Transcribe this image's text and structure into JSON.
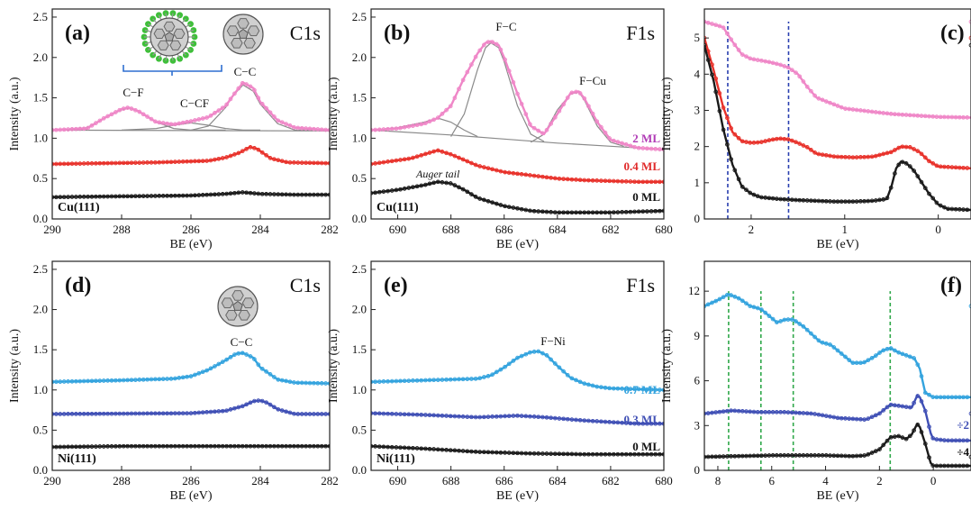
{
  "colors": {
    "black": "#1a1a1a",
    "red": "#e8312a",
    "pink": "#ef86c7",
    "light_blue": "#33a3de",
    "dark_blue": "#3f4fb5",
    "fit_gray": "#8a8a8a",
    "bracket_blue": "#2f6fd0",
    "dash_blue": "#2a3fb0",
    "dash_green": "#2fa84a",
    "magenta_text": "#b03ab5",
    "red_text": "#e02a2a"
  },
  "chart_data": [
    {
      "id": "a",
      "type": "line",
      "panel_label": "(a)",
      "orbital": "C1s",
      "substrate": "Cu(111)",
      "xlabel": "BE (eV)",
      "ylabel": "Intensity (a.u.)",
      "xlim": [
        290,
        282
      ],
      "ylim": [
        0,
        2.6
      ],
      "xticks": [
        "290",
        "288",
        "286",
        "284",
        "282"
      ],
      "yticks": [
        "0.0",
        "0.5",
        "1.0",
        "1.5",
        "2.0",
        "2.5"
      ],
      "peak_labels": [
        "C−F",
        "C−CF",
        "C−C"
      ],
      "series": [
        {
          "color": "pink",
          "x": [
            290,
            289,
            288.5,
            288,
            287.8,
            287.5,
            287,
            286.5,
            286,
            285.5,
            285,
            284.8,
            284.5,
            284.2,
            284,
            283.5,
            283,
            282
          ],
          "values": [
            1.1,
            1.12,
            1.25,
            1.36,
            1.38,
            1.33,
            1.2,
            1.17,
            1.21,
            1.26,
            1.4,
            1.52,
            1.69,
            1.62,
            1.45,
            1.22,
            1.13,
            1.1
          ]
        },
        {
          "color": "red",
          "x": [
            290,
            287,
            285.5,
            285,
            284.6,
            284.3,
            284.1,
            283.7,
            283.2,
            282
          ],
          "values": [
            0.68,
            0.7,
            0.72,
            0.76,
            0.82,
            0.89,
            0.87,
            0.75,
            0.7,
            0.69
          ]
        },
        {
          "color": "black",
          "x": [
            290,
            288,
            286,
            285,
            284.5,
            284,
            283,
            282
          ],
          "values": [
            0.27,
            0.28,
            0.29,
            0.31,
            0.33,
            0.31,
            0.3,
            0.3
          ]
        }
      ],
      "fits": [
        {
          "x": [
            290,
            282
          ],
          "values": [
            1.1,
            1.09
          ]
        },
        {
          "x": [
            290,
            289,
            288.5,
            288,
            287.8,
            287.5,
            287,
            286.5,
            286,
            285
          ],
          "values": [
            1.1,
            1.13,
            1.25,
            1.35,
            1.37,
            1.33,
            1.2,
            1.12,
            1.1,
            1.1
          ]
        },
        {
          "x": [
            288,
            287,
            286.5,
            286,
            285.5,
            285,
            284.5,
            284
          ],
          "values": [
            1.1,
            1.12,
            1.16,
            1.19,
            1.16,
            1.12,
            1.1,
            1.1
          ]
        },
        {
          "x": [
            286,
            285.5,
            285,
            284.8,
            284.5,
            284.2,
            284,
            283.5,
            283,
            282.5
          ],
          "values": [
            1.1,
            1.15,
            1.38,
            1.52,
            1.66,
            1.58,
            1.42,
            1.18,
            1.1,
            1.1
          ]
        }
      ]
    },
    {
      "id": "b",
      "type": "line",
      "panel_label": "(b)",
      "orbital": "F1s",
      "substrate": "Cu(111)",
      "xlabel": "BE (eV)",
      "ylabel": "Intensity (a.u.)",
      "xlim": [
        691,
        680
      ],
      "ylim": [
        0,
        2.6
      ],
      "xticks": [
        "690",
        "688",
        "686",
        "684",
        "682",
        "680"
      ],
      "yticks": [
        "0.0",
        "0.5",
        "1.0",
        "1.5",
        "2.0",
        "2.5"
      ],
      "peak_labels": [
        "F−C",
        "F−Cu"
      ],
      "coverage_labels": [
        "2 ML",
        "0.4 ML",
        "0 ML"
      ],
      "note": "Auger tail",
      "series": [
        {
          "color": "pink",
          "x": [
            691,
            690,
            689,
            688.5,
            688,
            687.5,
            687,
            686.7,
            686.5,
            686.2,
            686,
            685.5,
            685,
            684.5,
            684,
            683.5,
            683.2,
            683,
            682.5,
            682,
            681,
            680
          ],
          "values": [
            1.1,
            1.12,
            1.18,
            1.25,
            1.4,
            1.75,
            2.05,
            2.18,
            2.2,
            2.15,
            2.0,
            1.55,
            1.15,
            1.05,
            1.3,
            1.56,
            1.58,
            1.5,
            1.2,
            0.98,
            0.88,
            0.86
          ]
        },
        {
          "color": "red",
          "x": [
            691,
            689.5,
            688.5,
            688,
            687,
            686,
            685,
            684,
            683,
            682,
            681,
            680
          ],
          "values": [
            0.68,
            0.75,
            0.85,
            0.8,
            0.66,
            0.58,
            0.54,
            0.5,
            0.48,
            0.47,
            0.46,
            0.46
          ]
        },
        {
          "color": "black",
          "x": [
            691,
            690,
            689,
            688.5,
            688,
            687.5,
            687,
            686,
            685,
            684,
            683,
            682,
            681,
            680
          ],
          "values": [
            0.32,
            0.36,
            0.42,
            0.46,
            0.44,
            0.36,
            0.26,
            0.16,
            0.1,
            0.08,
            0.08,
            0.08,
            0.09,
            0.1
          ]
        }
      ],
      "fits": [
        {
          "x": [
            691,
            688,
            686,
            684,
            682,
            680
          ],
          "values": [
            1.1,
            1.04,
            0.99,
            0.94,
            0.9,
            0.86
          ]
        },
        {
          "x": [
            691,
            690,
            689,
            688.5,
            688,
            687.5,
            687
          ],
          "values": [
            1.1,
            1.13,
            1.2,
            1.25,
            1.2,
            1.1,
            1.02
          ]
        },
        {
          "x": [
            688,
            687.5,
            687,
            686.7,
            686.5,
            686.2,
            686,
            685.5,
            685,
            684.5
          ],
          "values": [
            1.02,
            1.3,
            1.85,
            2.12,
            2.18,
            2.12,
            1.95,
            1.4,
            1.05,
            0.96
          ]
        },
        {
          "x": [
            685,
            684.5,
            684,
            683.5,
            683.2,
            683,
            682.5,
            682,
            681.5
          ],
          "values": [
            0.95,
            1.05,
            1.35,
            1.55,
            1.57,
            1.48,
            1.15,
            0.95,
            0.9
          ]
        }
      ]
    },
    {
      "id": "c",
      "type": "line",
      "panel_label": "(c)",
      "xlabel": "BE (eV)",
      "ylabel": "Intensity (a.u.)",
      "xlim": [
        2.5,
        -0.35
      ],
      "ylim": [
        0,
        5.8
      ],
      "xticks": [
        "2",
        "1",
        "0"
      ],
      "yticks": [
        "0",
        "1",
        "2",
        "3",
        "4",
        "5"
      ],
      "markers_x": [
        2.25,
        1.6
      ],
      "series": [
        {
          "color": "pink",
          "x": [
            2.5,
            2.3,
            2.2,
            2.1,
            2.0,
            1.9,
            1.8,
            1.7,
            1.6,
            1.5,
            1.4,
            1.3,
            1.0,
            0.5,
            0,
            -0.35
          ],
          "values": [
            5.45,
            5.3,
            4.9,
            4.55,
            4.42,
            4.38,
            4.33,
            4.27,
            4.18,
            4.0,
            3.65,
            3.35,
            3.05,
            2.9,
            2.82,
            2.8
          ]
        },
        {
          "color": "red",
          "x": [
            2.5,
            2.4,
            2.3,
            2.2,
            2.1,
            2.0,
            1.9,
            1.8,
            1.7,
            1.6,
            1.5,
            1.4,
            1.3,
            1.1,
            0.9,
            0.7,
            0.5,
            0.4,
            0.3,
            0.2,
            0.1,
            0,
            -0.35
          ],
          "values": [
            5.0,
            4.1,
            3.1,
            2.4,
            2.15,
            2.1,
            2.12,
            2.18,
            2.22,
            2.2,
            2.1,
            1.98,
            1.8,
            1.72,
            1.7,
            1.72,
            1.85,
            2.0,
            1.98,
            1.85,
            1.6,
            1.45,
            1.4
          ]
        },
        {
          "color": "black",
          "x": [
            2.5,
            2.4,
            2.3,
            2.2,
            2.1,
            2.0,
            1.9,
            1.7,
            1.5,
            1.3,
            1.1,
            0.9,
            0.7,
            0.55,
            0.5,
            0.45,
            0.4,
            0.35,
            0.3,
            0.25,
            0.2,
            0.1,
            0,
            -0.1,
            -0.35
          ],
          "values": [
            4.8,
            3.8,
            2.5,
            1.5,
            0.9,
            0.7,
            0.6,
            0.55,
            0.52,
            0.5,
            0.48,
            0.48,
            0.5,
            0.55,
            0.9,
            1.4,
            1.58,
            1.55,
            1.45,
            1.3,
            1.1,
            0.7,
            0.4,
            0.28,
            0.25
          ]
        }
      ]
    },
    {
      "id": "d",
      "type": "line",
      "panel_label": "(d)",
      "orbital": "C1s",
      "substrate": "Ni(111)",
      "xlabel": "BE (eV)",
      "ylabel": "Intensity (a.u.)",
      "xlim": [
        290,
        282
      ],
      "ylim": [
        0,
        2.6
      ],
      "xticks": [
        "290",
        "288",
        "286",
        "284",
        "282"
      ],
      "yticks": [
        "0.0",
        "0.5",
        "1.0",
        "1.5",
        "2.0",
        "2.5"
      ],
      "peak_labels": [
        "C−C"
      ],
      "series": [
        {
          "color": "light_blue",
          "x": [
            290,
            288,
            286.5,
            286,
            285.5,
            285,
            284.7,
            284.5,
            284.2,
            284,
            283.5,
            283,
            282
          ],
          "values": [
            1.1,
            1.12,
            1.14,
            1.17,
            1.25,
            1.37,
            1.45,
            1.46,
            1.4,
            1.28,
            1.13,
            1.09,
            1.08
          ]
        },
        {
          "color": "dark_blue",
          "x": [
            290,
            286,
            285,
            284.5,
            284.2,
            284,
            283.8,
            283.5,
            283,
            282
          ],
          "values": [
            0.7,
            0.71,
            0.74,
            0.8,
            0.86,
            0.87,
            0.84,
            0.76,
            0.7,
            0.7
          ]
        },
        {
          "color": "black",
          "x": [
            290,
            288,
            286,
            284,
            282
          ],
          "values": [
            0.29,
            0.3,
            0.3,
            0.3,
            0.3
          ]
        }
      ]
    },
    {
      "id": "e",
      "type": "line",
      "panel_label": "(e)",
      "orbital": "F1s",
      "substrate": "Ni(111)",
      "xlabel": "BE (eV)",
      "ylabel": "Intensity (a.u.)",
      "xlim": [
        691,
        680
      ],
      "ylim": [
        0,
        2.6
      ],
      "xticks": [
        "690",
        "688",
        "686",
        "684",
        "682",
        "680"
      ],
      "yticks": [
        "0.0",
        "0.5",
        "1.0",
        "1.5",
        "2.0",
        "2.5"
      ],
      "peak_labels": [
        "F−Ni"
      ],
      "coverage_labels": [
        "0.7 ML",
        "0.3 ML",
        "0 ML"
      ],
      "series": [
        {
          "color": "light_blue",
          "x": [
            691,
            689,
            687,
            686.5,
            686,
            685.5,
            685,
            684.7,
            684.4,
            684,
            683.5,
            683,
            682.5,
            682,
            681,
            680
          ],
          "values": [
            1.1,
            1.12,
            1.14,
            1.18,
            1.28,
            1.4,
            1.47,
            1.48,
            1.43,
            1.3,
            1.15,
            1.08,
            1.04,
            1.02,
            1.01,
            1.0
          ]
        },
        {
          "color": "dark_blue",
          "x": [
            691,
            689,
            687,
            685.5,
            684.5,
            683,
            682,
            681,
            680
          ],
          "values": [
            0.71,
            0.69,
            0.66,
            0.68,
            0.66,
            0.62,
            0.6,
            0.58,
            0.58
          ]
        },
        {
          "color": "black",
          "x": [
            691,
            689,
            687,
            685,
            683,
            681,
            680
          ],
          "values": [
            0.3,
            0.27,
            0.23,
            0.21,
            0.2,
            0.2,
            0.2
          ]
        }
      ]
    },
    {
      "id": "f",
      "type": "line",
      "panel_label": "(f)",
      "xlabel": "BE (eV)",
      "ylabel": "Intensity (a.u.)",
      "xlim": [
        8.5,
        -1.4
      ],
      "ylim": [
        0,
        14
      ],
      "xticks": [
        "8",
        "6",
        "4",
        "2",
        "0"
      ],
      "yticks": [
        "0",
        "3",
        "6",
        "9",
        "12"
      ],
      "markers_x": [
        7.6,
        6.4,
        5.2,
        1.6
      ],
      "scale_labels": [
        "÷2",
        "÷4"
      ],
      "series": [
        {
          "color": "light_blue",
          "x": [
            8.5,
            8.0,
            7.6,
            7.2,
            6.8,
            6.4,
            6.2,
            5.8,
            5.5,
            5.2,
            4.8,
            4.5,
            4.2,
            3.8,
            3.4,
            3.0,
            2.6,
            2.2,
            1.9,
            1.6,
            1.3,
            1.0,
            0.7,
            0.5,
            0.3,
            0.0,
            -0.5,
            -1.4
          ],
          "values": [
            11.0,
            11.4,
            11.8,
            11.5,
            11.0,
            10.8,
            10.5,
            9.9,
            10.1,
            10.1,
            9.6,
            9.1,
            8.6,
            8.4,
            7.8,
            7.2,
            7.2,
            7.6,
            8.0,
            8.2,
            7.9,
            7.7,
            7.5,
            6.8,
            5.2,
            4.9,
            4.9,
            4.9
          ]
        },
        {
          "color": "dark_blue",
          "x": [
            8.5,
            7.5,
            6.5,
            5.5,
            4.5,
            3.5,
            2.5,
            2.0,
            1.6,
            1.2,
            0.8,
            0.6,
            0.5,
            0.3,
            0.1,
            0.0,
            -0.5,
            -1.4
          ],
          "values": [
            3.8,
            4.0,
            3.9,
            3.9,
            3.8,
            3.5,
            3.4,
            3.8,
            4.4,
            4.3,
            4.2,
            5.0,
            4.9,
            4.0,
            2.5,
            2.1,
            2.0,
            2.0
          ]
        },
        {
          "color": "black",
          "x": [
            8.5,
            6,
            4,
            3,
            2.5,
            2.0,
            1.6,
            1.3,
            1.0,
            0.8,
            0.6,
            0.5,
            0.3,
            0.1,
            0.0,
            -0.5,
            -1.4
          ],
          "values": [
            0.9,
            1.0,
            1.0,
            0.95,
            1.0,
            1.4,
            2.2,
            2.3,
            2.1,
            2.4,
            3.1,
            2.9,
            1.8,
            0.5,
            0.3,
            0.3,
            0.3
          ]
        }
      ]
    }
  ]
}
